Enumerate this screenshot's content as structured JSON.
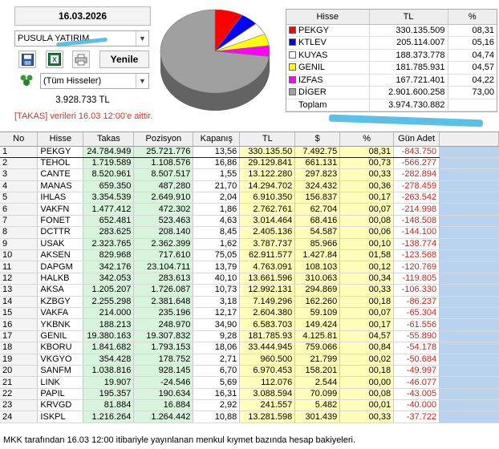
{
  "header": {
    "date": "16.03.2026",
    "broker": "PUSULA YATIRIM",
    "refresh_label": "Yenile",
    "stock_filter": "(Tüm Hisseler)",
    "total_value": "3.928.733 TL",
    "info_note": "[TAKAS] verileri 16.03 12:00'e aittir."
  },
  "icons": {
    "save": "save-icon",
    "excel": "excel-icon",
    "print": "printer-icon",
    "group": "group-icon"
  },
  "legend": {
    "headers": [
      "Hisse",
      "TL",
      "%"
    ],
    "rows": [
      {
        "name": "PEKGY",
        "tl": "330.135.509",
        "pct": "08,31",
        "color": "#ff0000"
      },
      {
        "name": "KTLEV",
        "tl": "205.114.007",
        "pct": "05,16",
        "color": "#0000ff"
      },
      {
        "name": "KUYAS",
        "tl": "188.373.778",
        "pct": "04,74",
        "color": "#ffffff"
      },
      {
        "name": "GENIL",
        "tl": "181.785.931",
        "pct": "04,57",
        "color": "#ffff00"
      },
      {
        "name": "IZFAS",
        "tl": "167.721.401",
        "pct": "04,22",
        "color": "#ff00ff"
      },
      {
        "name": "DİGER",
        "tl": "2.901.600.258",
        "pct": "73,00",
        "color": "#a0a0a0"
      }
    ],
    "total_label": "Toplam",
    "total_tl": "3.974.730.882"
  },
  "chart_data": {
    "type": "pie",
    "categories": [
      "PEKGY",
      "KTLEV",
      "KUYAS",
      "GENIL",
      "IZFAS",
      "DİGER"
    ],
    "values": [
      8.31,
      5.16,
      4.74,
      4.57,
      4.22,
      73.0
    ],
    "colors": [
      "#ff0000",
      "#0000ff",
      "#ffffff",
      "#ffff00",
      "#ff00ff",
      "#a0a0a0"
    ]
  },
  "grid": {
    "headers": [
      "No",
      "Hisse",
      "Takas",
      "Pozisyon",
      "Kapanış",
      "TL",
      "$",
      "%",
      "Gün Adet"
    ],
    "rows": [
      [
        "1",
        "PEKGY",
        "24.784.949",
        "25.721.776",
        "13,56",
        "330.135.50",
        "7.492.75",
        "08,31",
        "-843.750"
      ],
      [
        "2",
        "TEHOL",
        "1.719.589",
        "1.108.576",
        "16,86",
        "29.129.841",
        "661.131",
        "00,73",
        "-566.277"
      ],
      [
        "3",
        "CANTE",
        "8.520.961",
        "8.507.517",
        "1,55",
        "13.122.280",
        "297.823",
        "00,33",
        "-282.894"
      ],
      [
        "4",
        "MANAS",
        "659.350",
        "487.280",
        "21,70",
        "14.294.702",
        "324.432",
        "00,36",
        "-278.459"
      ],
      [
        "5",
        "IHLAS",
        "3.354.539",
        "2.649.910",
        "2,04",
        "6.910.350",
        "156.837",
        "00,17",
        "-263.542"
      ],
      [
        "6",
        "VAKFN",
        "1.477.412",
        "472.302",
        "1,86",
        "2.762.761",
        "62.704",
        "00,07",
        "-214.998"
      ],
      [
        "7",
        "FONET",
        "652.481",
        "523.463",
        "4,63",
        "3.014.464",
        "68.416",
        "00,08",
        "-148.508"
      ],
      [
        "8",
        "DCTTR",
        "283.625",
        "208.140",
        "8,45",
        "2.405.136",
        "54.587",
        "00,06",
        "-144.100"
      ],
      [
        "9",
        "USAK",
        "2.323.765",
        "2.362.399",
        "1,62",
        "3.787.737",
        "85.966",
        "00,10",
        "-138.774"
      ],
      [
        "10",
        "AKSEN",
        "829.968",
        "717.610",
        "75,05",
        "62.911.577",
        "1.427.84",
        "01,58",
        "-123.568"
      ],
      [
        "11",
        "DAPGM",
        "342.176",
        "23.104.711",
        "13,79",
        "4.763.091",
        "108.103",
        "00,12",
        "-120.769"
      ],
      [
        "12",
        "HALKB",
        "342.053",
        "283.613",
        "40,10",
        "13.661.596",
        "310.063",
        "00,34",
        "-119.805"
      ],
      [
        "13",
        "AKSA",
        "1.205.207",
        "1.726.087",
        "10,73",
        "12.992.131",
        "294.869",
        "00,33",
        "-106.330"
      ],
      [
        "14",
        "KZBGY",
        "2.255.298",
        "2.381.648",
        "3,18",
        "7.149.296",
        "162.260",
        "00,18",
        "-86.237"
      ],
      [
        "15",
        "VAKFA",
        "214.000",
        "235.196",
        "12,17",
        "2.604.380",
        "59.109",
        "00,07",
        "-65.304"
      ],
      [
        "16",
        "YKBNK",
        "188.213",
        "248.970",
        "34,90",
        "6.583.703",
        "149.424",
        "00,17",
        "-61.556"
      ],
      [
        "17",
        "GENIL",
        "19.380.163",
        "19.307.832",
        "9,28",
        "181.785.93",
        "4.125.81",
        "04,57",
        "-55.890"
      ],
      [
        "18",
        "KBORU",
        "1.841.682",
        "1.793.153",
        "18,06",
        "33.444.945",
        "759.066",
        "00,84",
        "-54.178"
      ],
      [
        "19",
        "VKGYO",
        "354.428",
        "178.752",
        "2,71",
        "960.500",
        "21.799",
        "00,02",
        "-50.684"
      ],
      [
        "20",
        "SANFM",
        "1.038.816",
        "928.145",
        "6,70",
        "6.970.453",
        "158.201",
        "00,18",
        "-49.997"
      ],
      [
        "21",
        "LINK",
        "19.907",
        "-24.546",
        "5,69",
        "112.076",
        "2.544",
        "00,00",
        "-46.077"
      ],
      [
        "22",
        "PAPIL",
        "195.357",
        "190.634",
        "16,31",
        "3.088.594",
        "70.099",
        "00,08",
        "-43.005"
      ],
      [
        "23",
        "KRVGD",
        "81.884",
        "16.884",
        "2,92",
        "241.557",
        "5.482",
        "00,01",
        "-40.000"
      ],
      [
        "24",
        "ISKPL",
        "1.216.264",
        "1.264.442",
        "10,88",
        "13.281.598",
        "301.439",
        "00,33",
        "-37.722"
      ]
    ]
  },
  "footer": {
    "note": "MKK tarafından 16.03 12:00 itibariyle yayınlanan menkul kıymet bazında hesap bakiyeleri."
  }
}
